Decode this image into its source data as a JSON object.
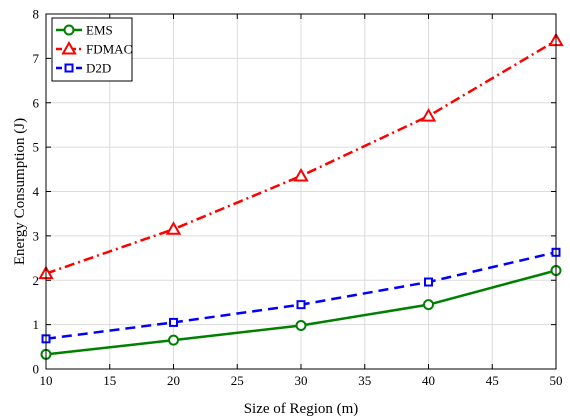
{
  "chart_data": {
    "type": "line",
    "xlabel": "Size of Region (m)",
    "ylabel": "Energy Consumption (J)",
    "xlim": [
      10,
      50
    ],
    "ylim": [
      0,
      8
    ],
    "xticks": [
      10,
      15,
      20,
      25,
      30,
      35,
      40,
      45,
      50
    ],
    "yticks": [
      0,
      1,
      2,
      3,
      4,
      5,
      6,
      7,
      8
    ],
    "grid": true,
    "legend_position": "top-left",
    "x": [
      10,
      20,
      30,
      40,
      50
    ],
    "series": [
      {
        "name": "EMS",
        "values": [
          0.33,
          0.65,
          0.98,
          1.45,
          2.22
        ],
        "color": "#008000",
        "marker": "circle",
        "dash": "solid"
      },
      {
        "name": "FDMAC",
        "values": [
          2.15,
          3.15,
          4.35,
          5.7,
          7.4
        ],
        "color": "#ff0000",
        "marker": "triangle",
        "dash": "dashdot"
      },
      {
        "name": "D2D",
        "values": [
          0.68,
          1.05,
          1.45,
          1.96,
          2.63
        ],
        "color": "#0000ff",
        "marker": "square",
        "dash": "dashed"
      }
    ]
  }
}
